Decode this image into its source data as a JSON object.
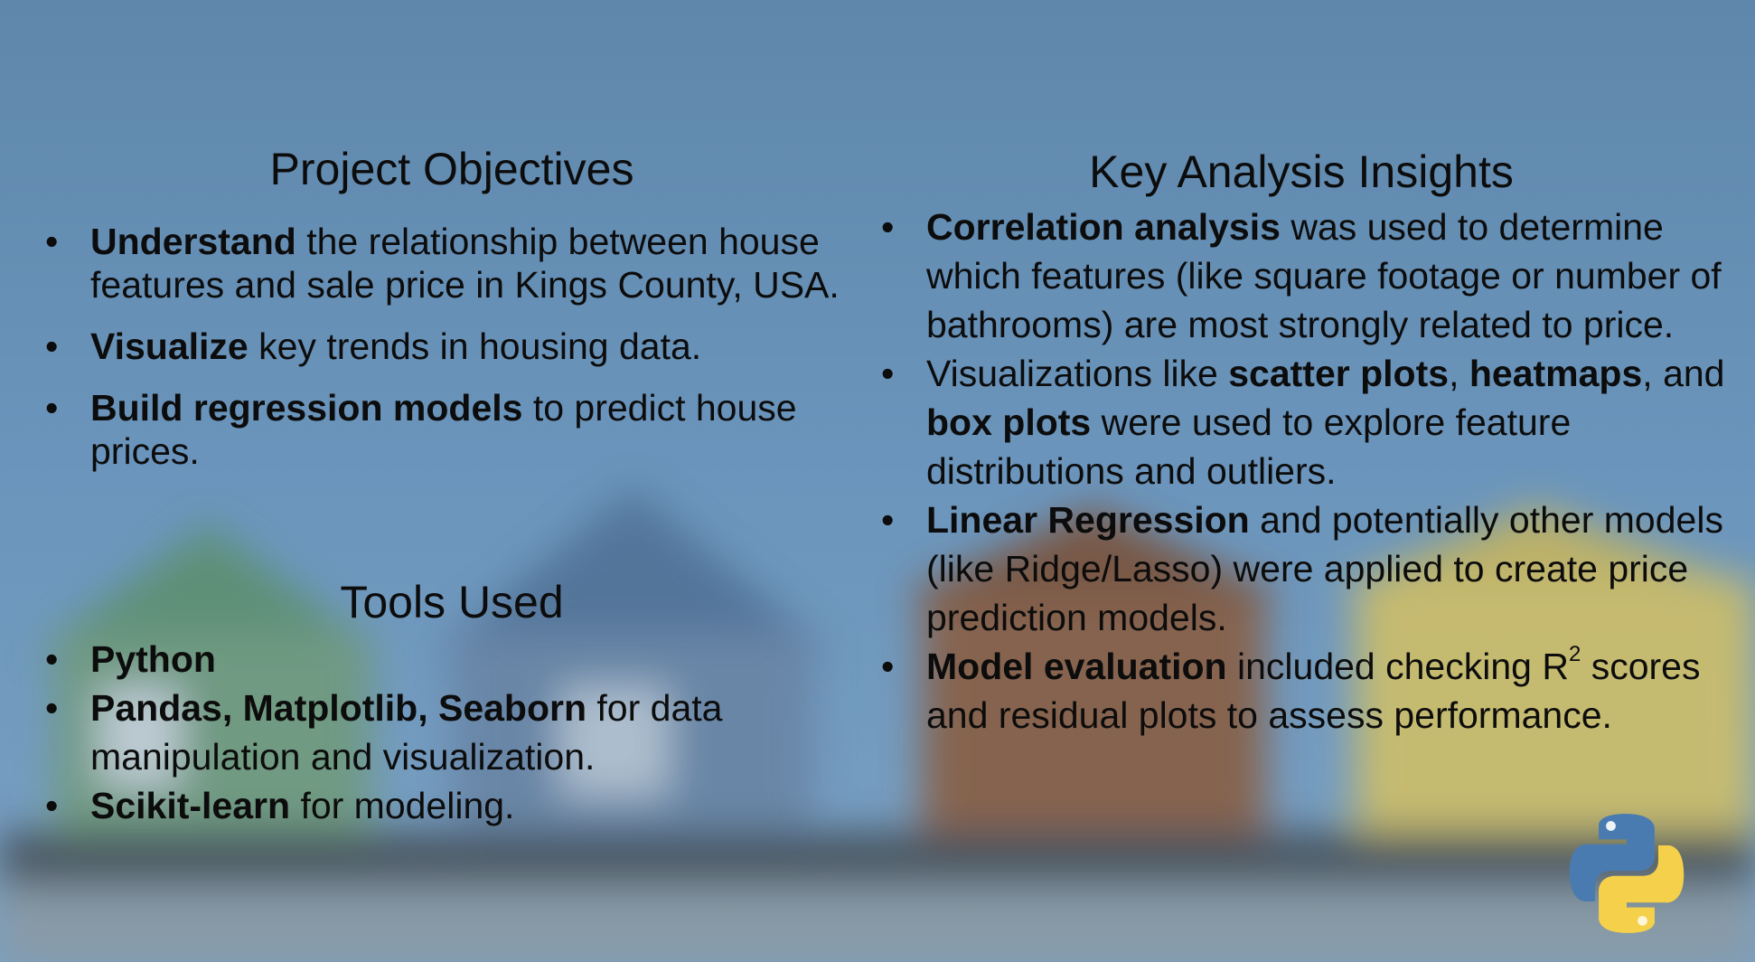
{
  "colors": {
    "sky": "#6a93b8",
    "text": "#0c0c0c",
    "python_blue": "#4a7bb0",
    "python_yellow": "#f5d04a"
  },
  "objectives": {
    "title": "Project Objectives",
    "items": [
      {
        "bold": "Understand",
        "rest": " the relationship between house features and sale price in Kings County, USA."
      },
      {
        "bold": "Visualize",
        "rest": " key trends in housing data."
      },
      {
        "bold": "Build regression models",
        "rest": " to predict house prices."
      }
    ]
  },
  "tools": {
    "title": "Tools Used",
    "items": [
      {
        "bold": "Python",
        "rest": ""
      },
      {
        "bold": "Pandas, Matplotlib, Seaborn",
        "rest": " for data manipulation and visualization."
      },
      {
        "bold": "Scikit-learn",
        "rest": " for modeling."
      }
    ]
  },
  "insights": {
    "title": "Key Analysis Insights",
    "i0": {
      "b0": "Correlation analysis",
      "t0": " was used to determine which features (like square footage or number of bathrooms) are most strongly related to price."
    },
    "i1": {
      "t0": "Visualizations like ",
      "b0": "scatter plots",
      "t1": ", ",
      "b1": "heatmaps",
      "t2": ",",
      "t3": " and ",
      "b2": "box plots",
      "t4": " were used to explore feature distributions and outliers."
    },
    "i2": {
      "b0": "Linear Regression",
      "t0": " and potentially other models (like Ridge/Lasso) were applied to create price prediction models."
    },
    "i3": {
      "b0": "Model evaluation",
      "t0": " included checking R",
      "sup": "2",
      "t1": " scores and residual plots to assess performance."
    }
  },
  "logo_icon": "python-logo-icon"
}
